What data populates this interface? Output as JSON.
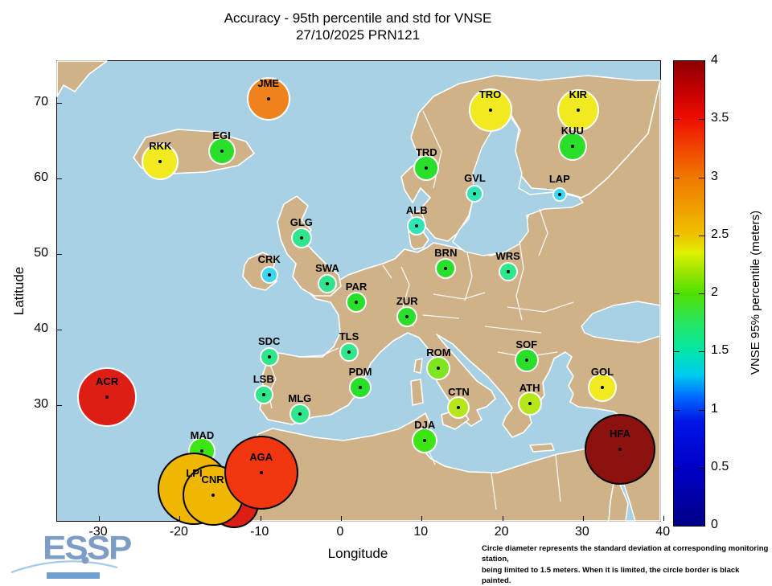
{
  "title": {
    "line1": "Accuracy - 95th percentile and std for VNSE",
    "line2": "27/10/2025 PRN121"
  },
  "axes": {
    "xlabel": "Longitude",
    "ylabel": "Latitude",
    "x_ticks": [
      -30,
      -20,
      -10,
      0,
      10,
      20,
      30,
      40
    ],
    "y_ticks": [
      30,
      40,
      50,
      60,
      70
    ]
  },
  "colorbar": {
    "label": "VNSE 95% percentile (meters)",
    "min": 0,
    "max": 4,
    "ticks": [
      0,
      0.5,
      1,
      1.5,
      2,
      2.5,
      3,
      3.5,
      4
    ],
    "gradient_stops": [
      {
        "v": 0.0,
        "c": "#000086"
      },
      {
        "v": 0.5,
        "c": "#0000c8"
      },
      {
        "v": 0.9,
        "c": "#0016e6"
      },
      {
        "v": 1.1,
        "c": "#0066ff"
      },
      {
        "v": 1.3,
        "c": "#00ccf0"
      },
      {
        "v": 1.5,
        "c": "#00e6aa"
      },
      {
        "v": 1.75,
        "c": "#28e65f"
      },
      {
        "v": 2.0,
        "c": "#50e000"
      },
      {
        "v": 2.2,
        "c": "#a0e600"
      },
      {
        "v": 2.35,
        "c": "#dff000"
      },
      {
        "v": 2.5,
        "c": "#f0c300"
      },
      {
        "v": 2.75,
        "c": "#f09b00"
      },
      {
        "v": 3.0,
        "c": "#f07800"
      },
      {
        "v": 3.25,
        "c": "#f04400"
      },
      {
        "v": 3.5,
        "c": "#ee0f00"
      },
      {
        "v": 3.75,
        "c": "#c40000"
      },
      {
        "v": 4.0,
        "c": "#8c0000"
      }
    ]
  },
  "note": {
    "line1": "Circle diameter represents the standard deviation at corresponding monitoring station,",
    "line2": "being limited to 1.5 meters. When it is limited, the circle border is black painted."
  },
  "logo": {
    "text": "ESSP"
  },
  "colors": {
    "sea": "#a8d1e4",
    "land": "#cfb288",
    "coast": "#ffffff",
    "logo_blue": "#7d9cc6"
  },
  "chart_data": {
    "type": "scatter",
    "title": "Accuracy - 95th percentile and std for VNSE 27/10/2025 PRN121",
    "xlabel": "Longitude",
    "ylabel": "Latitude",
    "xlim": [
      -35.2,
      39.7
    ],
    "ylim_note": "y axis labeled 30..70 latitude",
    "colorbar_label": "VNSE 95% percentile (meters)",
    "colorbar_range": [
      0,
      4
    ],
    "stations": [
      {
        "label": "JME",
        "lon": -9.0,
        "lat": 70.5,
        "value": 3.0,
        "std": 0.88,
        "r": 27,
        "fill": "#f0821e",
        "border": "white"
      },
      {
        "label": "RKK",
        "lon": -22.4,
        "lat": 62.2,
        "value": 2.4,
        "std": 0.75,
        "r": 23,
        "fill": "#f2ea20",
        "border": "white"
      },
      {
        "label": "EGI",
        "lon": -14.8,
        "lat": 63.6,
        "value": 1.8,
        "std": 0.55,
        "r": 17,
        "fill": "#2adf2a",
        "border": "white"
      },
      {
        "label": "TRO",
        "lon": 18.5,
        "lat": 69.0,
        "value": 2.4,
        "std": 0.88,
        "r": 27,
        "fill": "#f2ea20",
        "border": "white"
      },
      {
        "label": "KIR",
        "lon": 29.4,
        "lat": 69.0,
        "value": 2.4,
        "std": 0.85,
        "r": 26,
        "fill": "#f2ea20",
        "border": "white"
      },
      {
        "label": "KUU",
        "lon": 28.7,
        "lat": 64.3,
        "value": 1.8,
        "std": 0.59,
        "r": 18,
        "fill": "#2adf2a",
        "border": "white"
      },
      {
        "label": "TRD",
        "lon": 10.6,
        "lat": 61.4,
        "value": 1.8,
        "std": 0.52,
        "r": 16,
        "fill": "#2adf2a",
        "border": "white"
      },
      {
        "label": "GVL",
        "lon": 16.6,
        "lat": 58.0,
        "value": 1.4,
        "std": 0.36,
        "r": 11,
        "fill": "#2ee6b4",
        "border": "white"
      },
      {
        "label": "LAP",
        "lon": 27.1,
        "lat": 57.9,
        "value": 1.2,
        "std": 0.29,
        "r": 9,
        "fill": "#3cd8f0",
        "border": "white"
      },
      {
        "label": "ALB",
        "lon": 9.4,
        "lat": 53.7,
        "value": 1.4,
        "std": 0.39,
        "r": 12,
        "fill": "#2ee6b4",
        "border": "white"
      },
      {
        "label": "GLG",
        "lon": -4.9,
        "lat": 52.1,
        "value": 1.6,
        "std": 0.42,
        "r": 13,
        "fill": "#30e68c",
        "border": "white"
      },
      {
        "label": "CRK",
        "lon": -8.9,
        "lat": 47.2,
        "value": 1.2,
        "std": 0.36,
        "r": 11,
        "fill": "#3cd8f0",
        "border": "white"
      },
      {
        "label": "SWA",
        "lon": -1.7,
        "lat": 46.1,
        "value": 1.6,
        "std": 0.39,
        "r": 12,
        "fill": "#30e68c",
        "border": "white"
      },
      {
        "label": "BRN",
        "lon": 13.0,
        "lat": 48.1,
        "value": 1.8,
        "std": 0.42,
        "r": 13,
        "fill": "#2adf2a",
        "border": "white"
      },
      {
        "label": "WRS",
        "lon": 20.7,
        "lat": 47.7,
        "value": 1.6,
        "std": 0.39,
        "r": 12,
        "fill": "#30e68c",
        "border": "white"
      },
      {
        "label": "PAR",
        "lon": 1.9,
        "lat": 43.6,
        "value": 1.8,
        "std": 0.42,
        "r": 13,
        "fill": "#2adf2a",
        "border": "white"
      },
      {
        "label": "ZUR",
        "lon": 8.2,
        "lat": 41.7,
        "value": 1.8,
        "std": 0.42,
        "r": 13,
        "fill": "#2adf2a",
        "border": "white"
      },
      {
        "label": "SDC",
        "lon": -8.9,
        "lat": 36.4,
        "value": 1.6,
        "std": 0.39,
        "r": 12,
        "fill": "#30e68c",
        "border": "white"
      },
      {
        "label": "TLS",
        "lon": 1.0,
        "lat": 37.0,
        "value": 1.6,
        "std": 0.39,
        "r": 12,
        "fill": "#30e68c",
        "border": "white"
      },
      {
        "label": "ROM",
        "lon": 12.1,
        "lat": 34.9,
        "value": 2.1,
        "std": 0.49,
        "r": 15,
        "fill": "#7de620",
        "border": "white"
      },
      {
        "label": "SOF",
        "lon": 23.0,
        "lat": 36.0,
        "value": 1.8,
        "std": 0.49,
        "r": 15,
        "fill": "#2adf2a",
        "border": "white"
      },
      {
        "label": "LSB",
        "lon": -9.6,
        "lat": 31.4,
        "value": 1.6,
        "std": 0.39,
        "r": 12,
        "fill": "#30e68c",
        "border": "white"
      },
      {
        "label": "PDM",
        "lon": 2.4,
        "lat": 32.3,
        "value": 1.8,
        "std": 0.46,
        "r": 14,
        "fill": "#2adf2a",
        "border": "white"
      },
      {
        "label": "GOL",
        "lon": 32.4,
        "lat": 32.3,
        "value": 2.4,
        "std": 0.59,
        "r": 18,
        "fill": "#f2ea20",
        "border": "white"
      },
      {
        "label": "ACR",
        "lon": -29.0,
        "lat": 31.1,
        "value": 3.5,
        "std": 1.21,
        "r": 37,
        "fill": "#dc1e14",
        "border": "white"
      },
      {
        "label": "MLG",
        "lon": -5.1,
        "lat": 28.8,
        "value": 1.6,
        "std": 0.42,
        "r": 13,
        "fill": "#30e68c",
        "border": "white"
      },
      {
        "label": "CTN",
        "lon": 14.6,
        "lat": 29.7,
        "value": 2.2,
        "std": 0.46,
        "r": 14,
        "fill": "#b4e619",
        "border": "white"
      },
      {
        "label": "ATH",
        "lon": 23.4,
        "lat": 30.2,
        "value": 2.2,
        "std": 0.49,
        "r": 15,
        "fill": "#b4e619",
        "border": "white"
      },
      {
        "label": "DJA",
        "lon": 10.4,
        "lat": 25.3,
        "value": 1.9,
        "std": 0.52,
        "r": 16,
        "fill": "#3ce614",
        "border": "white"
      },
      {
        "label": "MAD",
        "lon": -17.2,
        "lat": 23.9,
        "value": 1.9,
        "std": 0.55,
        "r": 17,
        "fill": "#3ce614",
        "border": "white"
      },
      {
        "label": "",
        "lon": -13.3,
        "lat": 17.0,
        "value": 3.5,
        "std": 1.5,
        "r": 31,
        "fill": "#dc1e14",
        "border": "black"
      },
      {
        "label": "LPI",
        "lon": -18.2,
        "lat": 18.9,
        "value": 2.6,
        "std": 1.5,
        "r": 45,
        "fill": "#f0b702",
        "border": "black"
      },
      {
        "label": "CNR",
        "lon": -15.9,
        "lat": 18.1,
        "value": 2.6,
        "std": 1.5,
        "r": 38,
        "fill": "#f0b702",
        "border": "black"
      },
      {
        "label": "AGA",
        "lon": -9.9,
        "lat": 21.1,
        "value": 3.2,
        "std": 1.5,
        "r": 46,
        "fill": "#f23610",
        "border": "black"
      },
      {
        "label": "HFA",
        "lon": 34.6,
        "lat": 24.1,
        "value": 3.9,
        "std": 1.5,
        "r": 44,
        "fill": "#8c1210",
        "border": "black"
      }
    ]
  }
}
